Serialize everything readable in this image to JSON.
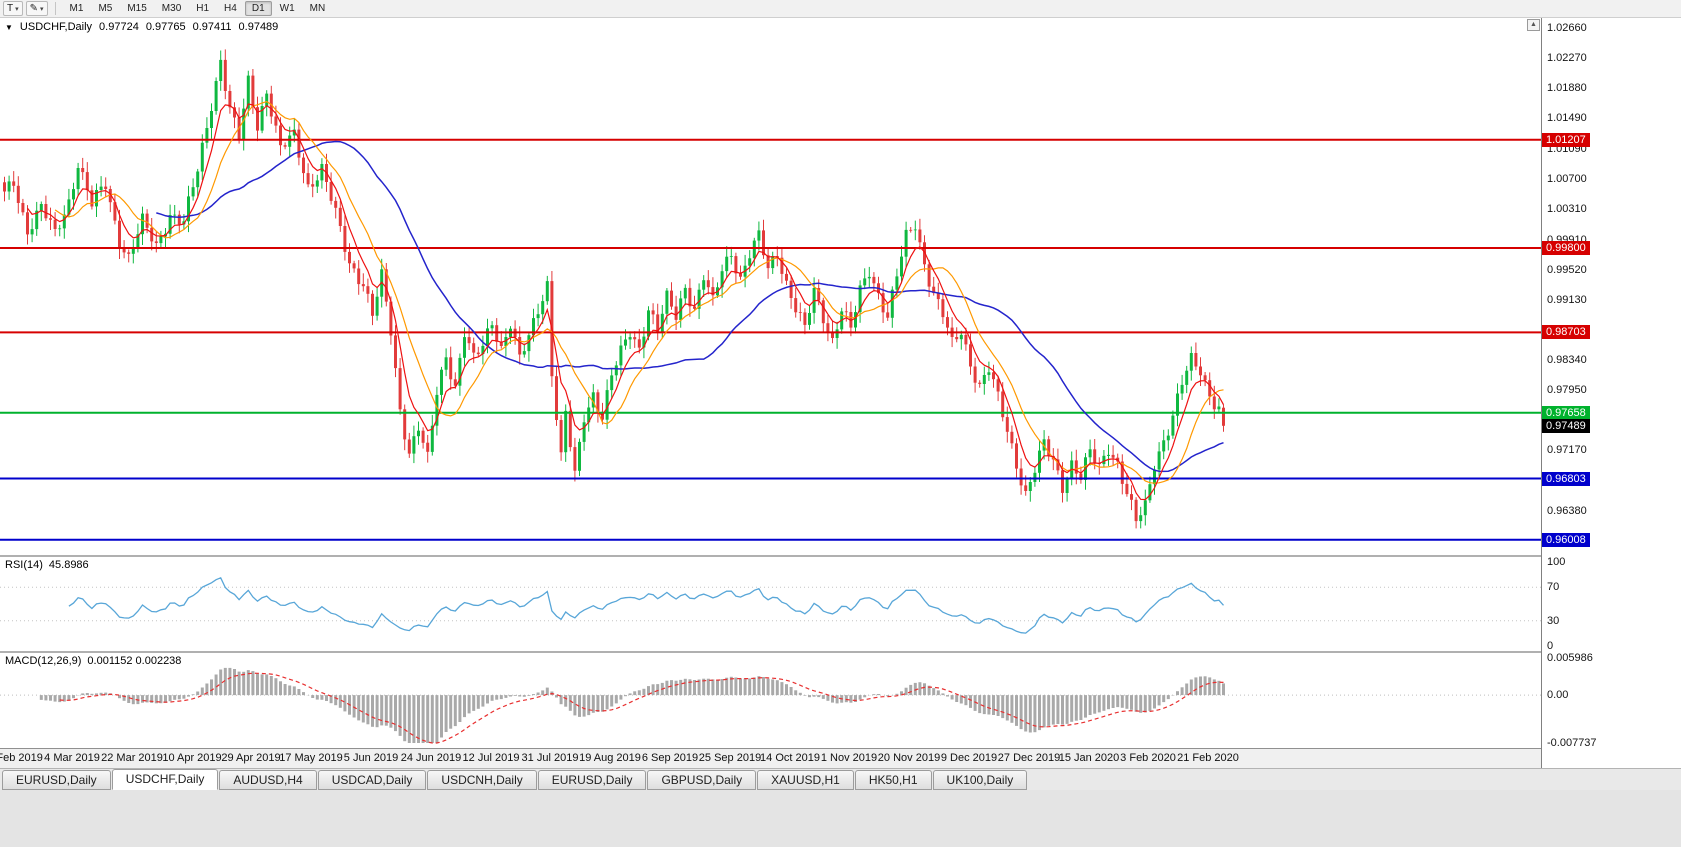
{
  "icons": {
    "caret_down": "▾",
    "pencil": "✎",
    "header_marker": "▼",
    "scroll_up": "▲"
  },
  "toolbar": {
    "template_button": "T",
    "timeframes": [
      "M1",
      "M5",
      "M15",
      "M30",
      "H1",
      "H4",
      "D1",
      "W1",
      "MN"
    ],
    "active_timeframe": "D1"
  },
  "chart": {
    "header": {
      "symbol": "USDCHF,Daily",
      "open": "0.97724",
      "high": "0.97765",
      "low": "0.97411",
      "close": "0.97489"
    },
    "price_axis": {
      "labels": [
        "1.02660",
        "1.02270",
        "1.01880",
        "1.01490",
        "1.01090",
        "1.00700",
        "1.00310",
        "0.99910",
        "0.99520",
        "0.99130",
        "0.98730",
        "0.98340",
        "0.97950",
        "0.97550",
        "0.97170",
        "0.96770",
        "0.96380",
        "0.95990"
      ]
    },
    "hlines": [
      {
        "label": "1.01207",
        "price": 1.01207,
        "color": "#d60000"
      },
      {
        "label": "0.99800",
        "price": 0.998,
        "color": "#d60000"
      },
      {
        "label": "0.98703",
        "price": 0.98703,
        "color": "#d60000"
      },
      {
        "label": "0.97658",
        "price": 0.97658,
        "color": "#00b22d"
      },
      {
        "label": "0.96803",
        "price": 0.96803,
        "color": "#0000cc"
      },
      {
        "label": "0.96008",
        "price": 0.96008,
        "color": "#0000cc"
      }
    ],
    "current_price": {
      "label": "0.97489",
      "price": 0.97489,
      "bg": "#000000"
    },
    "dates": [
      "13 Feb 2019",
      "4 Mar 2019",
      "22 Mar 2019",
      "10 Apr 2019",
      "29 Apr 2019",
      "17 May 2019",
      "5 Jun 2019",
      "24 Jun 2019",
      "12 Jul 2019",
      "31 Jul 2019",
      "19 Aug 2019",
      "6 Sep 2019",
      "25 Sep 2019",
      "14 Oct 2019",
      "1 Nov 2019",
      "20 Nov 2019",
      "9 Dec 2019",
      "27 Dec 2019",
      "15 Jan 2020",
      "3 Feb 2020",
      "21 Feb 2020"
    ],
    "colors": {
      "up": "#0fb840",
      "down": "#e23b3b",
      "ma_fast": "#ee1111",
      "ma_mid": "#ff9900",
      "ma_slow": "#2424cc"
    }
  },
  "rsi": {
    "name": "RSI(14)",
    "value": "45.8986",
    "color": "#58a6d8",
    "levels": [
      {
        "label": "100",
        "value": 100
      },
      {
        "label": "70",
        "value": 70
      },
      {
        "label": "30",
        "value": 30
      },
      {
        "label": "0",
        "value": 0
      }
    ]
  },
  "macd": {
    "name": "MACD(12,26,9)",
    "values": "0.001152 0.002238",
    "signal_color": "#e83030",
    "hist_color": "#a9a9a9",
    "levels": [
      {
        "label": "0.005986",
        "value": 0.005986
      },
      {
        "label": "0.00",
        "value": 0
      },
      {
        "label": "-0.007737",
        "value": -0.007737
      }
    ]
  },
  "tabs": {
    "items": [
      {
        "label": "EURUSD,Daily"
      },
      {
        "label": "USDCHF,Daily",
        "active": true
      },
      {
        "label": "AUDUSD,H4"
      },
      {
        "label": "USDCAD,Daily"
      },
      {
        "label": "USDCNH,Daily"
      },
      {
        "label": "EURUSD,Daily"
      },
      {
        "label": "GBPUSD,Daily"
      },
      {
        "label": "XAUUSD,H1"
      },
      {
        "label": "HK50,H1"
      },
      {
        "label": "UK100,Daily"
      }
    ]
  },
  "chart_data": {
    "type": "candlestick",
    "symbol": "USDCHF",
    "timeframe": "Daily",
    "bars": 266,
    "y_range": [
      0.959,
      1.027
    ],
    "last_bar": {
      "open": 0.97724,
      "high": 0.97765,
      "low": 0.97411,
      "close": 0.97489
    },
    "horizontal_levels": [
      1.01207,
      0.998,
      0.98703,
      0.97658,
      0.96803,
      0.96008
    ],
    "indicators": [
      {
        "name": "RSI",
        "period": 14,
        "last_value": 45.8986
      },
      {
        "name": "MACD",
        "fast": 12,
        "slow": 26,
        "signal": 9,
        "last_main": 0.001152,
        "last_signal": 0.002238
      }
    ],
    "price_keypoints": [
      [
        0,
        1.0048
      ],
      [
        2,
        1.0066
      ],
      [
        5,
        1.0005
      ],
      [
        8,
        1.0032
      ],
      [
        11,
        0.9996
      ],
      [
        14,
        1.0042
      ],
      [
        16,
        1.0092
      ],
      [
        19,
        1.0035
      ],
      [
        22,
        1.0062
      ],
      [
        25,
        0.9992
      ],
      [
        27,
        0.9968
      ],
      [
        30,
        1.0012
      ],
      [
        33,
        0.9982
      ],
      [
        36,
        1.0026
      ],
      [
        39,
        1.0012
      ],
      [
        42,
        1.008
      ],
      [
        45,
        1.017
      ],
      [
        47,
        1.0226
      ],
      [
        49,
        1.0158
      ],
      [
        51,
        1.012
      ],
      [
        53,
        1.0196
      ],
      [
        55,
        1.0142
      ],
      [
        57,
        1.0186
      ],
      [
        60,
        1.0106
      ],
      [
        63,
        1.0126
      ],
      [
        66,
        1.0062
      ],
      [
        69,
        1.0082
      ],
      [
        72,
        1.0022
      ],
      [
        75,
        0.9962
      ],
      [
        78,
        0.9936
      ],
      [
        80,
        0.9892
      ],
      [
        82,
        0.994
      ],
      [
        84,
        0.9872
      ],
      [
        86,
        0.9772
      ],
      [
        88,
        0.9716
      ],
      [
        90,
        0.9746
      ],
      [
        92,
        0.9702
      ],
      [
        94,
        0.9792
      ],
      [
        96,
        0.9842
      ],
      [
        98,
        0.9802
      ],
      [
        100,
        0.987
      ],
      [
        102,
        0.9832
      ],
      [
        104,
        0.9852
      ],
      [
        106,
        0.9886
      ],
      [
        108,
        0.9852
      ],
      [
        110,
        0.9882
      ],
      [
        112,
        0.9832
      ],
      [
        114,
        0.9862
      ],
      [
        116,
        0.9902
      ],
      [
        118,
        0.9936
      ],
      [
        119,
        0.982
      ],
      [
        121,
        0.9706
      ],
      [
        122,
        0.9762
      ],
      [
        123,
        0.9722
      ],
      [
        124,
        0.9682
      ],
      [
        126,
        0.9762
      ],
      [
        128,
        0.9792
      ],
      [
        130,
        0.9762
      ],
      [
        132,
        0.9812
      ],
      [
        134,
        0.9842
      ],
      [
        136,
        0.9872
      ],
      [
        138,
        0.9852
      ],
      [
        140,
        0.9902
      ],
      [
        142,
        0.9872
      ],
      [
        144,
        0.9912
      ],
      [
        146,
        0.9892
      ],
      [
        148,
        0.9932
      ],
      [
        150,
        0.9902
      ],
      [
        152,
        0.9942
      ],
      [
        154,
        0.9906
      ],
      [
        156,
        0.9952
      ],
      [
        158,
        0.9976
      ],
      [
        160,
        0.9942
      ],
      [
        162,
        0.9972
      ],
      [
        164,
        0.9992
      ],
      [
        166,
        0.9952
      ],
      [
        168,
        0.9976
      ],
      [
        170,
        0.9936
      ],
      [
        172,
        0.9902
      ],
      [
        174,
        0.9872
      ],
      [
        176,
        0.9922
      ],
      [
        178,
        0.9892
      ],
      [
        180,
        0.9862
      ],
      [
        182,
        0.9902
      ],
      [
        184,
        0.9872
      ],
      [
        186,
        0.9922
      ],
      [
        188,
        0.9952
      ],
      [
        190,
        0.9922
      ],
      [
        192,
        0.9892
      ],
      [
        194,
        0.9942
      ],
      [
        196,
        0.9992
      ],
      [
        198,
        1.0012
      ],
      [
        200,
        0.9962
      ],
      [
        202,
        0.9922
      ],
      [
        204,
        0.9892
      ],
      [
        206,
        0.9852
      ],
      [
        208,
        0.9872
      ],
      [
        210,
        0.9832
      ],
      [
        212,
        0.9802
      ],
      [
        214,
        0.9822
      ],
      [
        216,
        0.9782
      ],
      [
        218,
        0.9742
      ],
      [
        220,
        0.9702
      ],
      [
        222,
        0.9662
      ],
      [
        224,
        0.9692
      ],
      [
        226,
        0.9722
      ],
      [
        228,
        0.9702
      ],
      [
        230,
        0.9672
      ],
      [
        232,
        0.9702
      ],
      [
        234,
        0.9682
      ],
      [
        236,
        0.9712
      ],
      [
        238,
        0.9692
      ],
      [
        240,
        0.9722
      ],
      [
        242,
        0.9702
      ],
      [
        244,
        0.9662
      ],
      [
        246,
        0.9622
      ],
      [
        248,
        0.9642
      ],
      [
        250,
        0.9702
      ],
      [
        252,
        0.9732
      ],
      [
        254,
        0.9762
      ],
      [
        256,
        0.9802
      ],
      [
        258,
        0.9832
      ],
      [
        260,
        0.9822
      ],
      [
        262,
        0.9792
      ],
      [
        264,
        0.9772
      ],
      [
        265,
        0.97489
      ]
    ]
  }
}
